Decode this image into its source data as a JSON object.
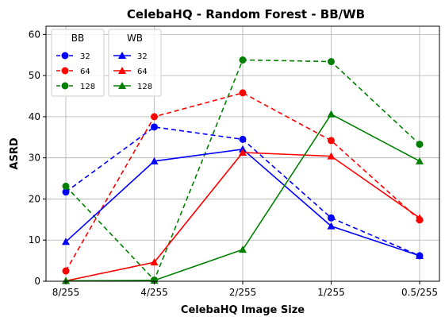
{
  "chart_data": {
    "type": "line",
    "title": "CelebaHQ - Random Forest - BB/WB",
    "xlabel": "CelebaHQ Image Size",
    "ylabel": "ASRD",
    "categories": [
      "8/255",
      "4/255",
      "2/255",
      "1/255",
      "0.5/255"
    ],
    "ylim": [
      0,
      62
    ],
    "yticks": [
      0,
      10,
      20,
      30,
      40,
      50,
      60
    ],
    "grid": true,
    "legend_placement": "top-left",
    "legends": [
      {
        "title": "BB",
        "entries": [
          "32",
          "64",
          "128"
        ]
      },
      {
        "title": "WB",
        "entries": [
          "32",
          "64",
          "128"
        ]
      }
    ],
    "series": [
      {
        "name": "32",
        "group": "BB",
        "color": "#0000ff",
        "linestyle": "dashed",
        "marker": "circle",
        "values": [
          21.7,
          37.5,
          34.5,
          15.4,
          6.2
        ]
      },
      {
        "name": "64",
        "group": "BB",
        "color": "#ff0000",
        "linestyle": "dashed",
        "marker": "circle",
        "values": [
          2.5,
          40.0,
          45.8,
          34.2,
          14.9
        ]
      },
      {
        "name": "128",
        "group": "BB",
        "color": "#008000",
        "linestyle": "dashed",
        "marker": "circle",
        "values": [
          23.1,
          0.3,
          53.8,
          53.4,
          33.3
        ]
      },
      {
        "name": "32",
        "group": "WB",
        "color": "#0000ff",
        "linestyle": "solid",
        "marker": "triangle",
        "values": [
          9.6,
          29.2,
          32.1,
          13.4,
          6.2
        ]
      },
      {
        "name": "64",
        "group": "WB",
        "color": "#ff0000",
        "linestyle": "solid",
        "marker": "triangle",
        "values": [
          0.1,
          4.6,
          31.3,
          30.4,
          15.4
        ]
      },
      {
        "name": "128",
        "group": "WB",
        "color": "#008000",
        "linestyle": "solid",
        "marker": "triangle",
        "values": [
          0.1,
          0.2,
          7.7,
          40.6,
          29.2
        ]
      }
    ]
  }
}
